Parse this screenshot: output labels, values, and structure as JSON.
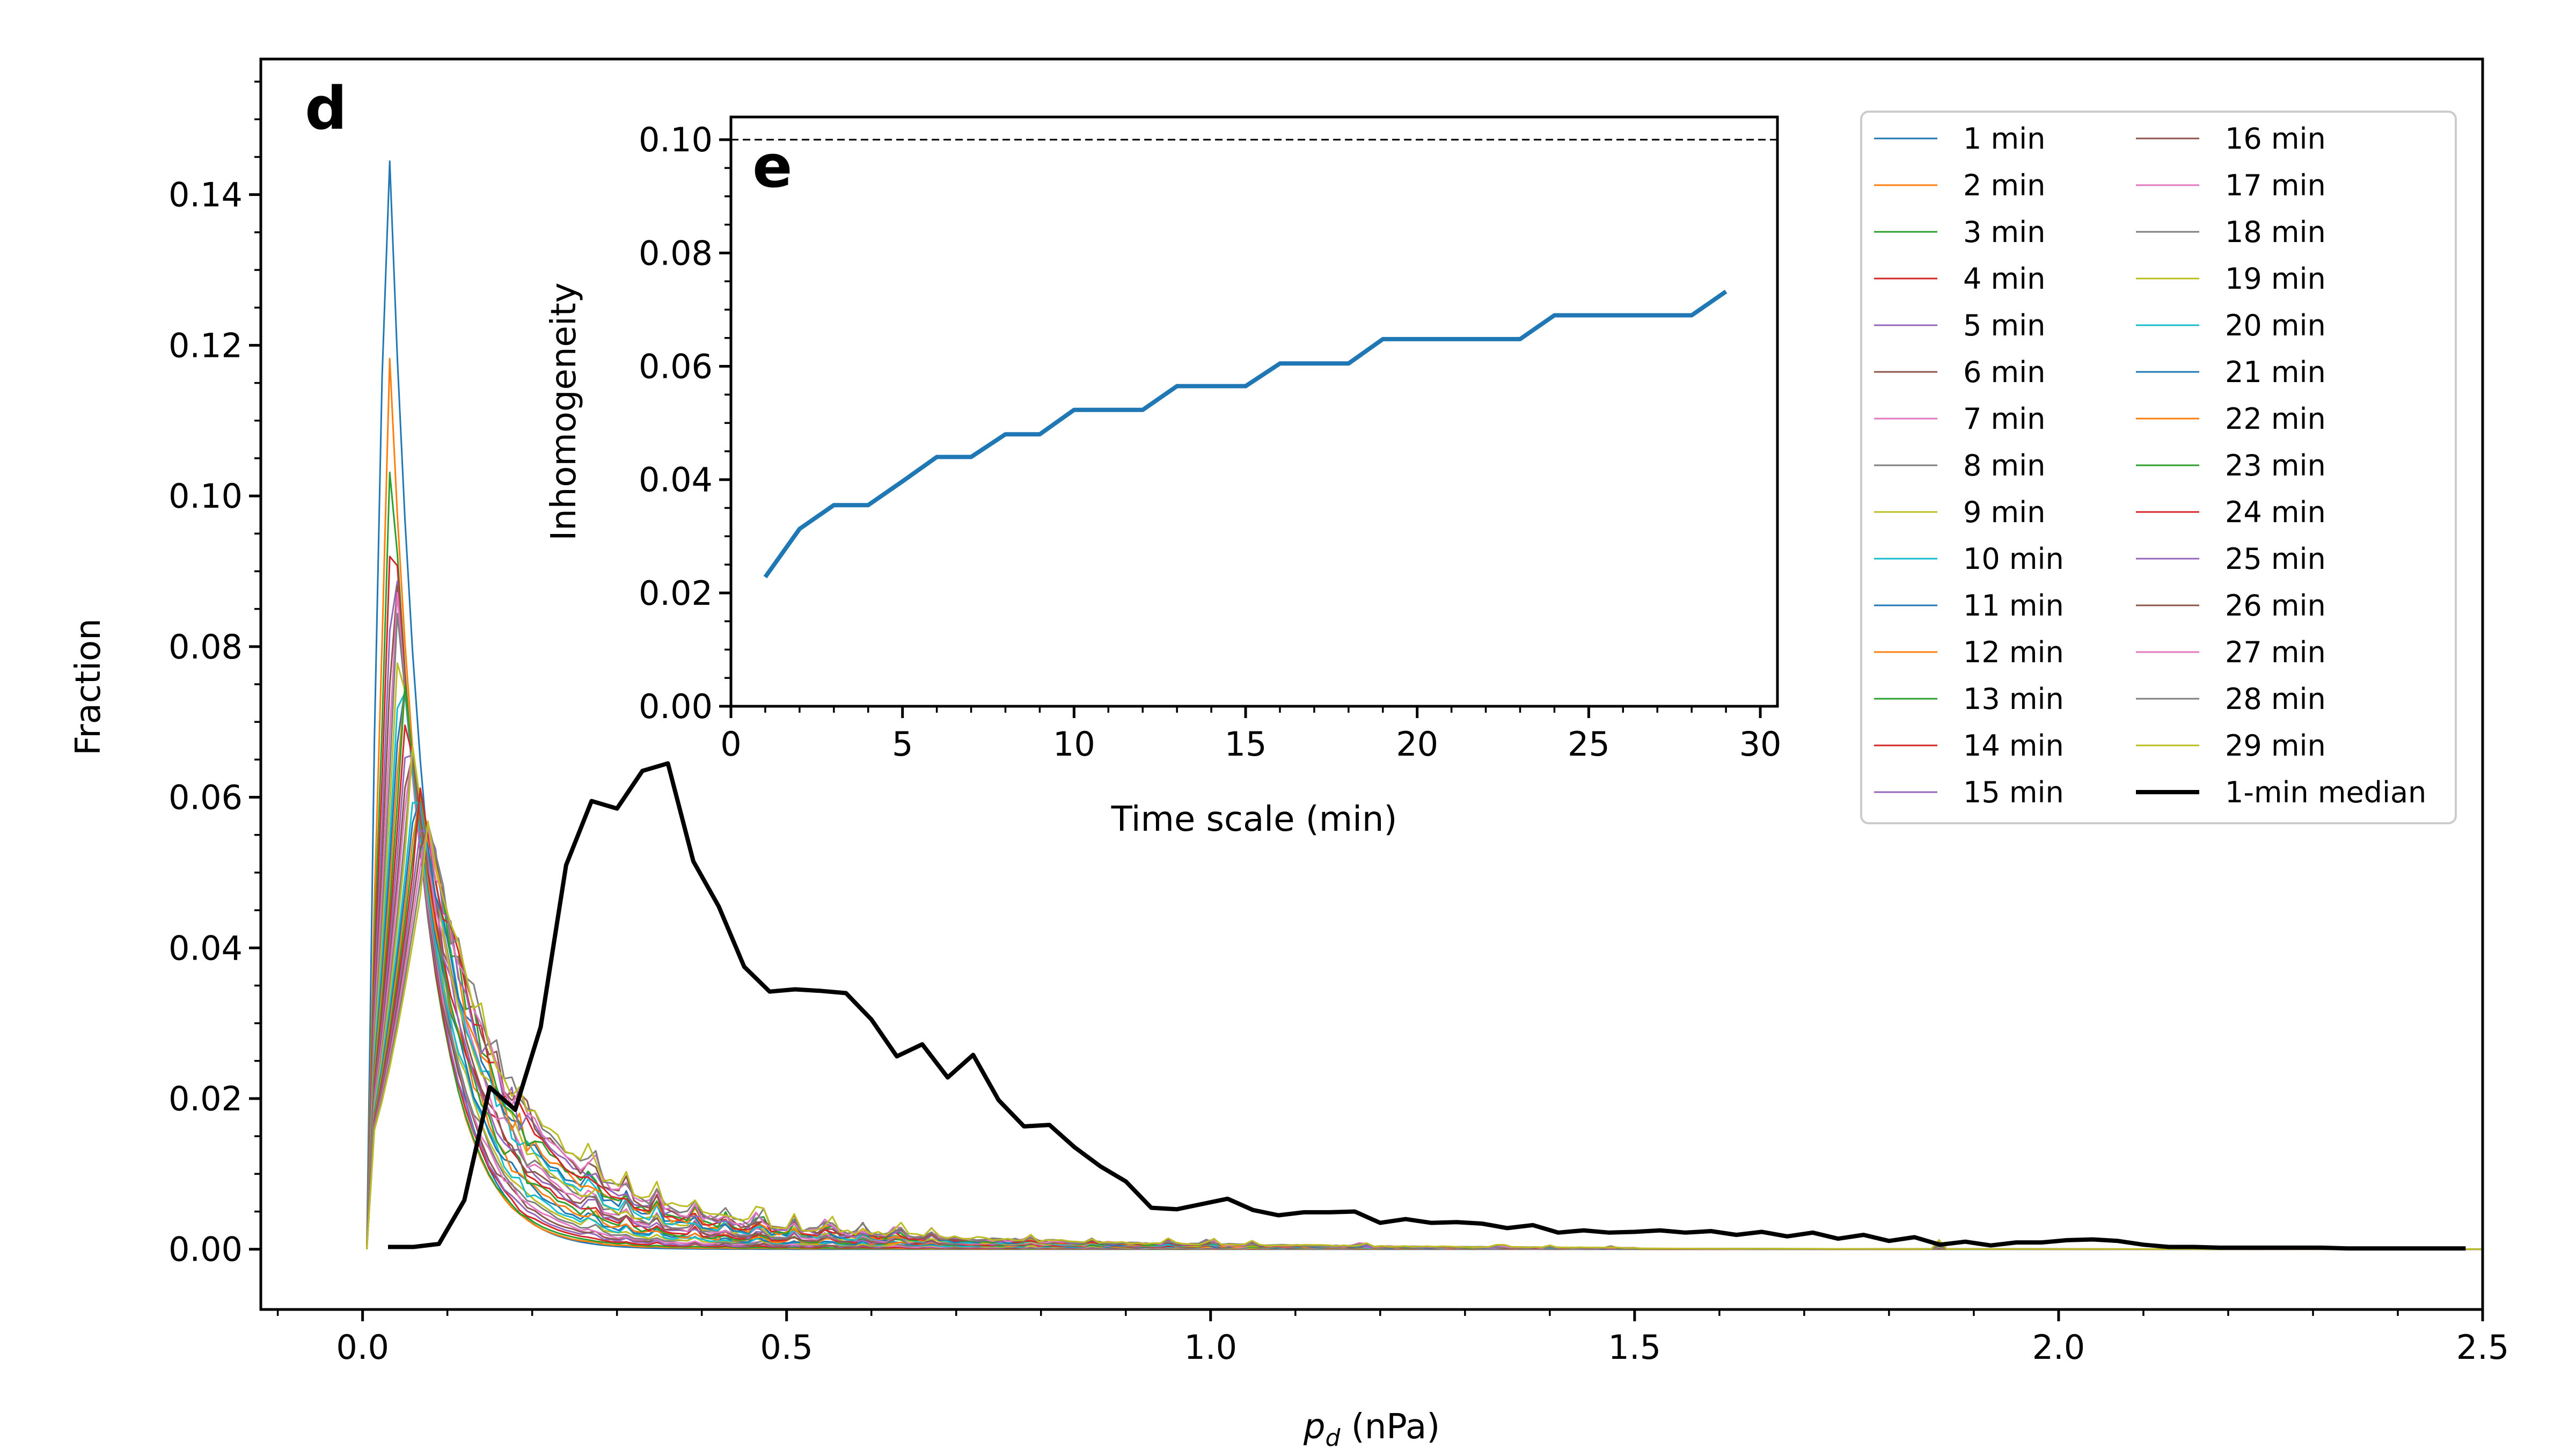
{
  "chart_data": [
    {
      "panel": "d",
      "type": "line",
      "xlabel_main": "p",
      "xlabel_sub": "d",
      "xlabel_unit": " (nPa)",
      "ylabel": "Fraction",
      "xlim": [
        -0.12,
        2.5
      ],
      "ylim": [
        -0.008,
        0.158
      ],
      "xticks": [
        0.0,
        0.5,
        1.0,
        1.5,
        2.0,
        2.5
      ],
      "xtick_labels": [
        "0.0",
        "0.5",
        "1.0",
        "1.5",
        "2.0",
        "2.5"
      ],
      "yticks": [
        0.0,
        0.02,
        0.04,
        0.06,
        0.08,
        0.1,
        0.12,
        0.14
      ],
      "ytick_labels": [
        "0.00",
        "0.02",
        "0.04",
        "0.06",
        "0.08",
        "0.10",
        "0.12",
        "0.14"
      ],
      "series_names": [
        "1 min",
        "2 min",
        "3 min",
        "4 min",
        "5 min",
        "6 min",
        "7 min",
        "8 min",
        "9 min",
        "10 min",
        "11 min",
        "12 min",
        "13 min",
        "14 min",
        "15 min",
        "16 min",
        "17 min",
        "18 min",
        "19 min",
        "20 min",
        "21 min",
        "22 min",
        "23 min",
        "24 min",
        "25 min",
        "26 min",
        "27 min",
        "28 min",
        "29 min"
      ],
      "series_colors": [
        "#1f77b4",
        "#ff7f0e",
        "#2ca02c",
        "#d62728",
        "#9467bd",
        "#8c564b",
        "#e377c2",
        "#7f7f7f",
        "#bcbd22",
        "#17becf",
        "#1f77b4",
        "#ff7f0e",
        "#2ca02c",
        "#d62728",
        "#9467bd",
        "#8c564b",
        "#e377c2",
        "#7f7f7f",
        "#bcbd22",
        "#17becf",
        "#1f77b4",
        "#ff7f0e",
        "#2ca02c",
        "#d62728",
        "#9467bd",
        "#8c564b",
        "#e377c2",
        "#7f7f7f",
        "#bcbd22"
      ],
      "series_peaks": [
        0.151,
        0.119,
        0.108,
        0.102,
        0.096,
        0.092,
        0.088,
        0.085,
        0.082,
        0.079,
        0.077,
        0.075,
        0.073,
        0.071,
        0.069,
        0.067,
        0.066,
        0.064,
        0.063,
        0.061,
        0.06,
        0.059,
        0.058,
        0.057,
        0.056,
        0.055,
        0.054,
        0.053,
        0.052
      ],
      "median": {
        "name": "1-min median",
        "color": "#000000",
        "x": [
          0.03,
          0.06,
          0.09,
          0.12,
          0.15,
          0.18,
          0.21,
          0.24,
          0.27,
          0.3,
          0.33,
          0.36,
          0.39,
          0.42,
          0.45,
          0.48,
          0.51,
          0.54,
          0.57,
          0.6,
          0.63,
          0.66,
          0.69,
          0.72,
          0.75,
          0.78,
          0.81,
          0.84,
          0.87,
          0.9,
          0.93,
          0.96,
          0.99,
          1.02,
          1.05,
          1.08,
          1.11,
          1.14,
          1.17,
          1.2,
          1.23,
          1.26,
          1.29,
          1.32,
          1.35,
          1.38,
          1.41,
          1.44,
          1.47,
          1.5,
          1.53,
          1.56,
          1.59,
          1.62,
          1.65,
          1.68,
          1.71,
          1.74,
          1.77,
          1.8,
          1.83,
          1.86,
          1.89,
          1.92,
          1.95,
          1.98,
          2.01,
          2.04,
          2.07,
          2.1,
          2.13,
          2.16,
          2.19,
          2.22,
          2.25,
          2.28,
          2.31,
          2.34,
          2.37,
          2.4,
          2.43,
          2.46,
          2.48
        ],
        "y": [
          0.0003,
          0.0003,
          0.0007,
          0.0065,
          0.0215,
          0.0185,
          0.0295,
          0.051,
          0.0595,
          0.0585,
          0.0635,
          0.0645,
          0.0515,
          0.0455,
          0.0375,
          0.0342,
          0.0345,
          0.0343,
          0.034,
          0.0305,
          0.0256,
          0.0272,
          0.0228,
          0.0258,
          0.0198,
          0.0163,
          0.0165,
          0.0135,
          0.011,
          0.009,
          0.0055,
          0.0053,
          0.006,
          0.0067,
          0.0052,
          0.0045,
          0.0049,
          0.0049,
          0.005,
          0.0035,
          0.004,
          0.0035,
          0.0036,
          0.0034,
          0.0028,
          0.0032,
          0.0022,
          0.0025,
          0.0022,
          0.0023,
          0.0025,
          0.0022,
          0.0024,
          0.0019,
          0.0023,
          0.0017,
          0.0022,
          0.0014,
          0.0019,
          0.0011,
          0.0016,
          0.0006,
          0.001,
          0.0005,
          0.0009,
          0.0009,
          0.0012,
          0.0013,
          0.0011,
          0.0006,
          0.0003,
          0.0003,
          0.0002,
          0.0002,
          0.0002,
          0.0002,
          0.0002,
          0.0001,
          0.0001,
          0.0001,
          0.0001,
          0.0001,
          0.0001
        ]
      },
      "legend_position": "upper right, two columns"
    },
    {
      "panel": "e",
      "type": "line",
      "xlabel": "Time scale (min)",
      "ylabel": "Inhomogeneity",
      "xlim": [
        0,
        30.5
      ],
      "ylim": [
        0.0,
        0.104
      ],
      "xticks": [
        0,
        5,
        10,
        15,
        20,
        25,
        30
      ],
      "xtick_labels": [
        "0",
        "5",
        "10",
        "15",
        "20",
        "25",
        "30"
      ],
      "yticks": [
        0.0,
        0.02,
        0.04,
        0.06,
        0.08,
        0.1
      ],
      "ytick_labels": [
        "0.00",
        "0.02",
        "0.04",
        "0.06",
        "0.08",
        "0.10"
      ],
      "reference_line": 0.1,
      "color": "#1f77b4",
      "x": [
        1,
        2,
        3,
        4,
        5,
        6,
        7,
        8,
        9,
        10,
        11,
        12,
        13,
        14,
        15,
        16,
        17,
        18,
        19,
        20,
        21,
        22,
        23,
        24,
        25,
        26,
        27,
        28,
        29
      ],
      "y": [
        0.0228,
        0.0313,
        0.0355,
        0.0355,
        0.0397,
        0.044,
        0.044,
        0.048,
        0.048,
        0.0523,
        0.0523,
        0.0523,
        0.0565,
        0.0565,
        0.0565,
        0.0605,
        0.0605,
        0.0605,
        0.0648,
        0.0648,
        0.0648,
        0.0648,
        0.0648,
        0.069,
        0.069,
        0.069,
        0.069,
        0.069,
        0.0732
      ]
    }
  ]
}
